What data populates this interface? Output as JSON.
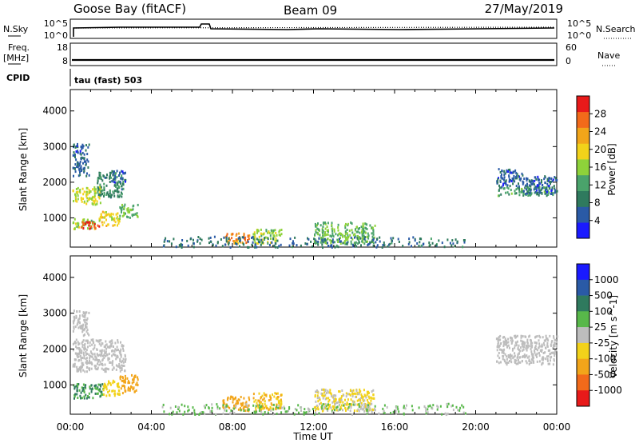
{
  "header": {
    "station": "Goose Bay (fitACF)",
    "beam": "Beam 09",
    "date": "27/May/2019"
  },
  "panels": {
    "nsky_label": "N.Sky",
    "nsky_ticks": [
      "10^5",
      "10^0"
    ],
    "nsearch_label": "N.Search",
    "nsearch_ticks": [
      "10^5",
      "10^0"
    ],
    "freq_label": "Freq.",
    "freq_unit": "[MHz]",
    "freq_ticks": [
      "18",
      "8"
    ],
    "nave_label": "Nave",
    "nave_ticks": [
      "60",
      "0"
    ],
    "cpid_label": "CPID",
    "cpid_value": "tau (fast) 503"
  },
  "colors": {
    "power_scale": [
      "#1a1aff",
      "#2a5aa6",
      "#2f7a5e",
      "#4aa36b",
      "#8ed23a",
      "#f2d21a",
      "#f2a51a",
      "#f26a1a",
      "#e81a1a"
    ],
    "velocity_scale": [
      "#1a1aff",
      "#2a5aa6",
      "#2f7a5e",
      "#58b84a",
      "#bdbdbd",
      "#f2d21a",
      "#f2a51a",
      "#f26a1a",
      "#e81a1a"
    ]
  },
  "chart_data": [
    {
      "type": "heatmap",
      "title": "Power",
      "xlabel": "",
      "ylabel": "Slant Range [km]",
      "xlim_hours": [
        0,
        24
      ],
      "ylim": [
        180,
        4600
      ],
      "y_ticks": [
        "1000",
        "2000",
        "3000",
        "4000"
      ],
      "colorbar_label": "Power [dB]",
      "colorbar_range": [
        0,
        32
      ],
      "colorbar_ticks": [
        "4",
        "8",
        "12",
        "16",
        "20",
        "24",
        "28"
      ],
      "regions": [
        {
          "t0": 0.1,
          "t1": 1.2,
          "r0": 700,
          "r1": 1000,
          "v": 16
        },
        {
          "t0": 0.5,
          "t1": 1.4,
          "r0": 720,
          "r1": 920,
          "v": 28
        },
        {
          "t0": 1.4,
          "t1": 2.4,
          "r0": 800,
          "r1": 1200,
          "v": 20
        },
        {
          "t0": 2.4,
          "t1": 3.3,
          "r0": 1000,
          "r1": 1400,
          "v": 14
        },
        {
          "t0": 0.1,
          "t1": 1.5,
          "r0": 1400,
          "r1": 1900,
          "v": 18
        },
        {
          "t0": 1.3,
          "t1": 2.6,
          "r0": 1600,
          "r1": 2300,
          "v": 10
        },
        {
          "t0": 2.0,
          "t1": 2.7,
          "r0": 2000,
          "r1": 2350,
          "v": 6
        },
        {
          "t0": 0.1,
          "t1": 0.9,
          "r0": 2200,
          "r1": 2600,
          "v": 7
        },
        {
          "t0": 0.1,
          "t1": 0.9,
          "r0": 2600,
          "r1": 3100,
          "v": 6
        },
        {
          "t0": 7.6,
          "t1": 8.8,
          "r0": 300,
          "r1": 600,
          "v": 24
        },
        {
          "t0": 9.0,
          "t1": 10.4,
          "r0": 300,
          "r1": 700,
          "v": 16
        },
        {
          "t0": 12.0,
          "t1": 15.0,
          "r0": 300,
          "r1": 900,
          "v": 14
        },
        {
          "t0": 4.5,
          "t1": 19.5,
          "r0": 200,
          "r1": 500,
          "v": 8
        },
        {
          "t0": 21.0,
          "t1": 23.8,
          "r0": 1650,
          "r1": 1900,
          "v": 12
        },
        {
          "t0": 21.0,
          "t1": 22.3,
          "r0": 1900,
          "r1": 2400,
          "v": 6
        },
        {
          "t0": 22.3,
          "t1": 24.0,
          "r0": 1700,
          "r1": 2200,
          "v": 6
        }
      ]
    },
    {
      "type": "heatmap",
      "title": "Velocity",
      "xlabel": "Time UT",
      "ylabel": "Slant Range [km]",
      "xlim_hours": [
        0,
        24
      ],
      "ylim": [
        180,
        4600
      ],
      "x_ticks": [
        "00:00",
        "04:00",
        "08:00",
        "12:00",
        "16:00",
        "20:00",
        "00:00"
      ],
      "y_ticks": [
        "1000",
        "2000",
        "3000",
        "4000"
      ],
      "colorbar_label": "Velocity [m s^-1]",
      "colorbar_ticks": [
        "1000",
        "500",
        "100",
        "25",
        "-25",
        "-100",
        "-500",
        "-1000"
      ],
      "regions": [
        {
          "t0": 0.1,
          "t1": 1.6,
          "r0": 650,
          "r1": 1050,
          "v": 100
        },
        {
          "t0": 1.6,
          "t1": 2.4,
          "r0": 700,
          "r1": 1150,
          "v": -60
        },
        {
          "t0": 2.4,
          "t1": 3.3,
          "r0": 800,
          "r1": 1300,
          "v": -120
        },
        {
          "t0": 0.1,
          "t1": 2.7,
          "r0": 1400,
          "r1": 2300,
          "v": 0
        },
        {
          "t0": 0.1,
          "t1": 0.9,
          "r0": 2400,
          "r1": 3100,
          "v": 0
        },
        {
          "t0": 7.5,
          "t1": 8.8,
          "r0": 300,
          "r1": 700,
          "v": -150
        },
        {
          "t0": 9.0,
          "t1": 10.4,
          "r0": 300,
          "r1": 800,
          "v": -100
        },
        {
          "t0": 12.0,
          "t1": 15.0,
          "r0": 300,
          "r1": 900,
          "v": -30
        },
        {
          "t0": 4.5,
          "t1": 19.5,
          "r0": 200,
          "r1": 500,
          "v": 30
        },
        {
          "t0": 21.0,
          "t1": 24.0,
          "r0": 1600,
          "r1": 2400,
          "v": 0
        }
      ]
    }
  ]
}
